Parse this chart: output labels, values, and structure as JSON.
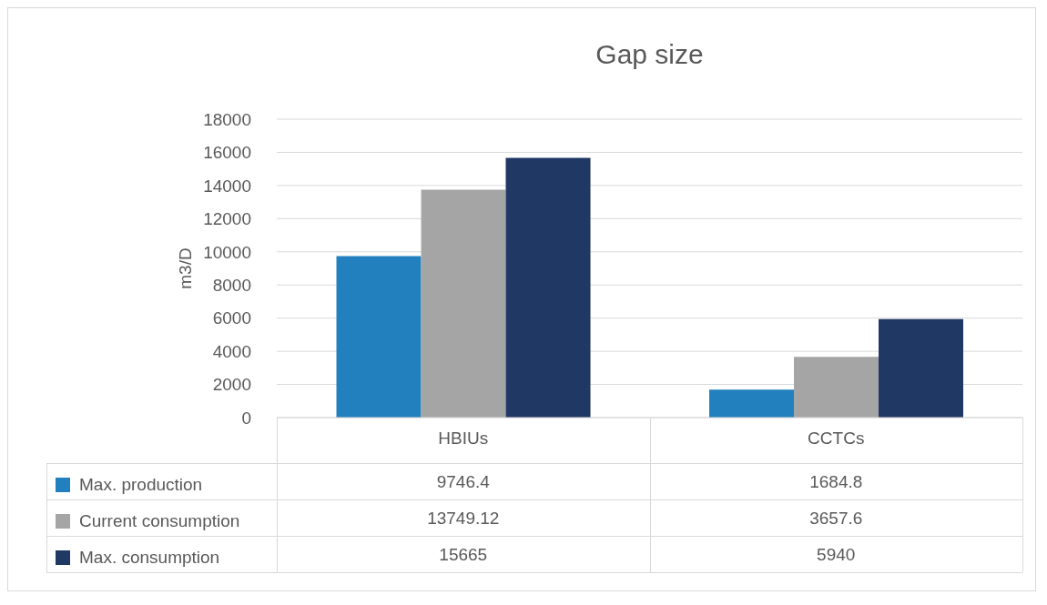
{
  "chart_data": {
    "type": "bar",
    "title": "Gap size",
    "ylabel": "m3/D",
    "categories": [
      "HBIUs",
      "CCTCs"
    ],
    "series": [
      {
        "name": "Max. production",
        "color": "#2180bd",
        "values": [
          9746.4,
          1684.8
        ]
      },
      {
        "name": "Current consumption",
        "color": "#a5a5a5",
        "values": [
          13749.12,
          3657.6
        ]
      },
      {
        "name": "Max. consumption",
        "color": "#203864",
        "values": [
          15665,
          5940
        ]
      }
    ],
    "ylim": [
      0,
      18000
    ],
    "yticks": [
      0,
      2000,
      4000,
      6000,
      8000,
      10000,
      12000,
      14000,
      16000,
      18000
    ],
    "grid": "y",
    "legend": "bottom",
    "data_labels": true
  }
}
